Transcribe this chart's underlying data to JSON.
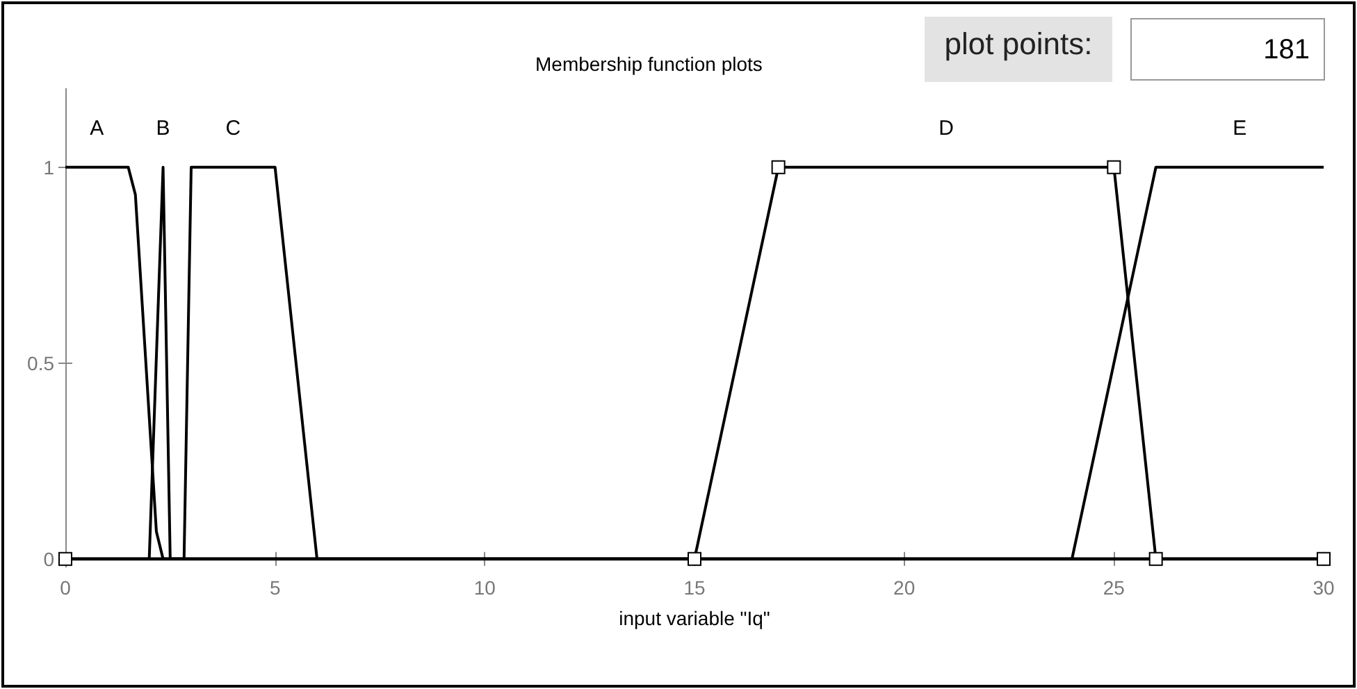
{
  "chart_data": {
    "type": "line",
    "title": "Membership function plots",
    "xlabel": "input variable \"Iq\"",
    "annotations": [
      "plot points:",
      "181"
    ],
    "xlim": [
      0,
      30
    ],
    "xticks": [
      0,
      5,
      10,
      15,
      20,
      25,
      30
    ],
    "ylim": [
      -0.02,
      1.2
    ],
    "yticks": [
      0,
      0.5,
      1
    ],
    "grid": false,
    "legend": false,
    "line_style": "solid",
    "series": [
      {
        "name": "A",
        "color": "#000000",
        "marker": "none",
        "x": [
          0,
          1.5,
          1.67,
          2.17,
          2.33,
          30
        ],
        "values": [
          1,
          1,
          0.93,
          0.07,
          0,
          0
        ]
      },
      {
        "name": "B",
        "color": "#000000",
        "marker": "none",
        "x": [
          0,
          2,
          2.33,
          2.5,
          30
        ],
        "values": [
          0,
          0,
          1,
          0,
          0
        ]
      },
      {
        "name": "C",
        "color": "#000000",
        "marker": "none",
        "x": [
          0,
          2.83,
          3,
          5,
          6,
          30
        ],
        "values": [
          0,
          0,
          1,
          1,
          0,
          0
        ]
      },
      {
        "name": "D",
        "color": "#000000",
        "marker": "square",
        "x": [
          0,
          15,
          17,
          25,
          26,
          30
        ],
        "values": [
          0,
          0,
          1,
          1,
          0,
          0
        ]
      },
      {
        "name": "E",
        "color": "#000000",
        "marker": "none",
        "x": [
          0,
          24,
          26,
          30
        ],
        "values": [
          0,
          0,
          1,
          1
        ]
      }
    ]
  }
}
